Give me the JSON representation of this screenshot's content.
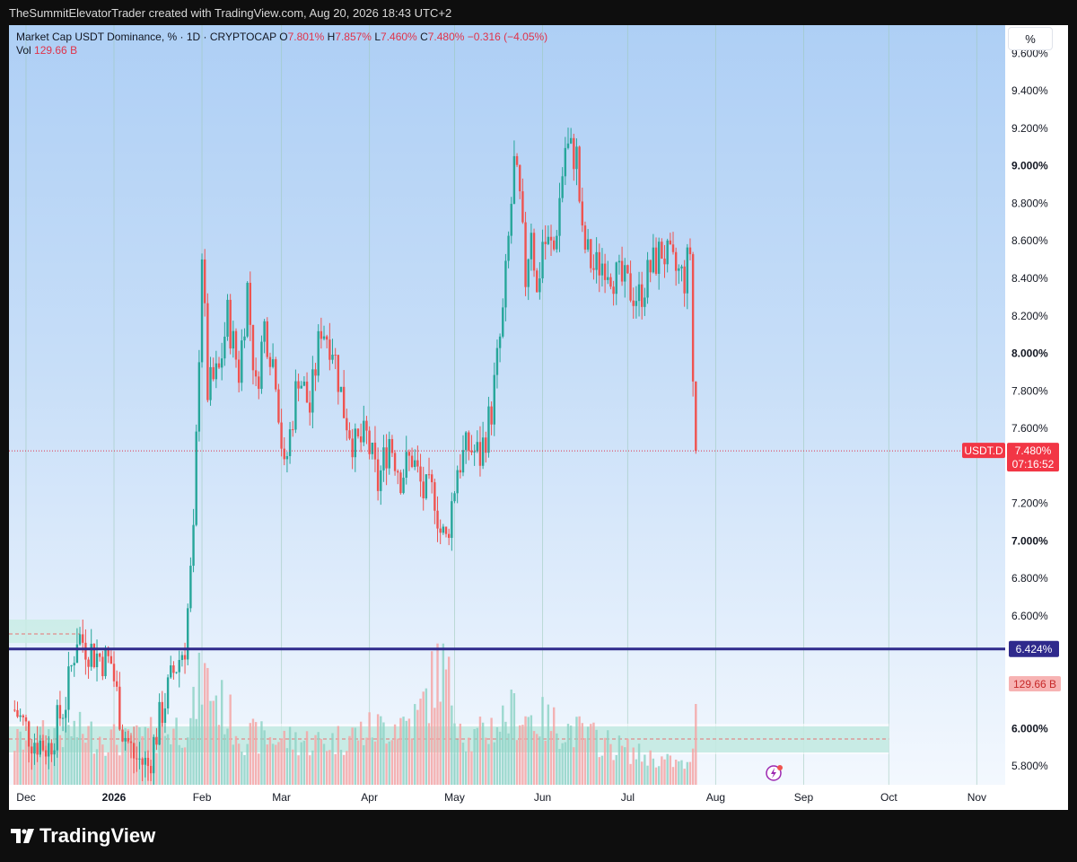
{
  "header": {
    "text": "TheSummitElevatorTrader created with TradingView.com, Aug 20, 2026 18:43 UTC+2"
  },
  "legend": {
    "title": "Market Cap USDT Dominance, % · 1D · CRYPTOCAP",
    "o_label": "O",
    "o_value": "7.801%",
    "h_label": "H",
    "h_value": "7.857%",
    "l_label": "L",
    "l_value": "7.460%",
    "c_label": "C",
    "c_value": "7.480%",
    "change": "−0.316 (−4.05%)",
    "vol_label": "Vol",
    "vol_value": "129.66 B"
  },
  "scale_button": "%",
  "footer": {
    "brand": "TradingView"
  },
  "colors": {
    "up": "#26a69a",
    "down": "#ef5350",
    "hline": "#2f2a8c",
    "price_tag": "#f23645"
  },
  "chart_data": {
    "type": "candlestick",
    "symbol_tag": "USDT.D",
    "last_price_label": "7.480%",
    "countdown": "07:16:52",
    "volume_label": "129.66 B",
    "hline_label": "6.424%",
    "hline_value": 6.424,
    "ylim": [
      5.7,
      9.75
    ],
    "y_ticks": [
      "9.600%",
      "9.400%",
      "9.200%",
      "9.000%",
      "8.800%",
      "8.600%",
      "8.400%",
      "8.200%",
      "8.000%",
      "7.800%",
      "7.600%",
      "7.200%",
      "7.000%",
      "6.800%",
      "6.600%",
      "6.000%",
      "5.800%"
    ],
    "y_tick_values": [
      9.6,
      9.4,
      9.2,
      9.0,
      8.8,
      8.6,
      8.4,
      8.2,
      8.0,
      7.8,
      7.6,
      7.2,
      7.0,
      6.8,
      6.6,
      6.0,
      5.8
    ],
    "x_ticks": [
      "Dec",
      "2026",
      "Feb",
      "Mar",
      "Apr",
      "May",
      "Jun",
      "Jul",
      "Aug",
      "Sep",
      "Oct",
      "Nov"
    ],
    "x_tick_days": [
      4,
      35,
      66,
      94,
      125,
      155,
      186,
      216,
      247,
      278,
      308,
      339
    ],
    "series": [
      {
        "name": "close",
        "anchors": [
          [
            0,
            6.1
          ],
          [
            6,
            5.95
          ],
          [
            12,
            5.9
          ],
          [
            18,
            6.15
          ],
          [
            22,
            6.5
          ],
          [
            28,
            6.4
          ],
          [
            34,
            6.35
          ],
          [
            38,
            6.0
          ],
          [
            42,
            5.85
          ],
          [
            47,
            5.8
          ],
          [
            52,
            6.1
          ],
          [
            56,
            6.3
          ],
          [
            60,
            6.45
          ],
          [
            63,
            7.0
          ],
          [
            66,
            8.55
          ],
          [
            68,
            7.8
          ],
          [
            72,
            7.9
          ],
          [
            75,
            8.2
          ],
          [
            79,
            7.9
          ],
          [
            82,
            8.35
          ],
          [
            85,
            7.8
          ],
          [
            88,
            8.15
          ],
          [
            92,
            7.9
          ],
          [
            95,
            7.35
          ],
          [
            100,
            7.9
          ],
          [
            104,
            7.7
          ],
          [
            108,
            8.15
          ],
          [
            112,
            8.05
          ],
          [
            116,
            7.7
          ],
          [
            120,
            7.5
          ],
          [
            124,
            7.55
          ],
          [
            128,
            7.3
          ],
          [
            132,
            7.55
          ],
          [
            136,
            7.35
          ],
          [
            140,
            7.45
          ],
          [
            144,
            7.25
          ],
          [
            148,
            7.25
          ],
          [
            150,
            7.05
          ],
          [
            152,
            7.0
          ],
          [
            156,
            7.4
          ],
          [
            160,
            7.5
          ],
          [
            164,
            7.45
          ],
          [
            168,
            7.7
          ],
          [
            172,
            8.2
          ],
          [
            174,
            8.6
          ],
          [
            176,
            9.0
          ],
          [
            178,
            8.8
          ],
          [
            180,
            8.4
          ],
          [
            182,
            8.7
          ],
          [
            184,
            8.3
          ],
          [
            186,
            8.6
          ],
          [
            190,
            8.55
          ],
          [
            194,
            9.1
          ],
          [
            198,
            9.05
          ],
          [
            200,
            8.6
          ],
          [
            204,
            8.45
          ],
          [
            208,
            8.5
          ],
          [
            212,
            8.4
          ],
          [
            216,
            8.35
          ],
          [
            220,
            8.3
          ],
          [
            224,
            8.45
          ],
          [
            228,
            8.55
          ],
          [
            232,
            8.45
          ],
          [
            236,
            8.4
          ],
          [
            238,
            8.55
          ],
          [
            239,
            7.85
          ],
          [
            240,
            7.48
          ]
        ]
      },
      {
        "name": "volume_rel",
        "anchors": [
          [
            0,
            0.35
          ],
          [
            20,
            0.45
          ],
          [
            40,
            0.35
          ],
          [
            62,
            0.5
          ],
          [
            66,
            0.9
          ],
          [
            80,
            0.4
          ],
          [
            110,
            0.35
          ],
          [
            125,
            0.45
          ],
          [
            142,
            0.55
          ],
          [
            150,
            1.0
          ],
          [
            160,
            0.35
          ],
          [
            176,
            0.6
          ],
          [
            196,
            0.45
          ],
          [
            220,
            0.25
          ],
          [
            238,
            0.15
          ],
          [
            240,
            0.6
          ]
        ]
      }
    ]
  }
}
